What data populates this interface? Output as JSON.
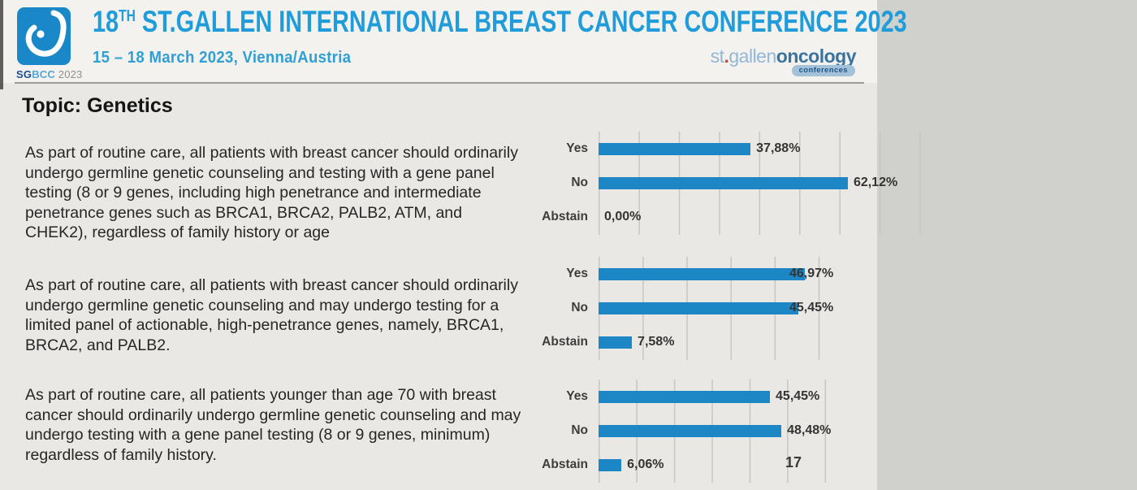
{
  "header": {
    "logo_caption": {
      "sg": "SG",
      "bcc": "BCC",
      "year": " 2023"
    },
    "title": {
      "num": "18",
      "sup": "TH",
      "rest": " ST.GALLEN INTERNATIONAL BREAST CANCER CONFERENCE 2023"
    },
    "subtitle": "15 – 18 March 2023, Vienna/Austria",
    "brand": {
      "st": "st",
      "dot": ".",
      "gallen": "gallen",
      "oncology": "oncology",
      "badge": "conferences"
    }
  },
  "topic": "Topic: Genetics",
  "page_number": "17",
  "questions": [
    "As part of routine care, all patients with breast cancer should ordinarily undergo germline genetic counseling and testing with a gene panel testing (8 or 9 genes, including high penetrance and intermediate penetrance genes such as BRCA1, BRCA2, PALB2, ATM, and CHEK2), regardless of family history or age",
    "As part of routine care, all patients with breast cancer should ordinarily undergo germline genetic counseling and may undergo testing for a limited panel of actionable, high-penetrance genes, namely, BRCA1, BRCA2, and PALB2.",
    "As part of routine care, all patients younger than age 70 with breast cancer should ordinarily undergo germline genetic counseling and may undergo testing with a gene panel testing (8 or 9 genes, minimum) regardless of family history."
  ],
  "chart_data": [
    {
      "type": "bar",
      "orientation": "horizontal",
      "categories": [
        "Yes",
        "No",
        "Abstain"
      ],
      "values": [
        37.88,
        62.12,
        0.0
      ],
      "value_labels": [
        "37,88%",
        "62,12%",
        "0,00%"
      ],
      "xlim": [
        0,
        85
      ],
      "gridline_step": 10,
      "grid": true,
      "bar_color": "#1d87c6"
    },
    {
      "type": "bar",
      "orientation": "horizontal",
      "categories": [
        "Yes",
        "No",
        "Abstain"
      ],
      "values": [
        46.97,
        45.45,
        7.58
      ],
      "value_labels": [
        "46,97%",
        "45,45%",
        "7,58%"
      ],
      "xlim": [
        0,
        60
      ],
      "gridline_step": 10,
      "grid": true,
      "bar_color": "#1d87c6"
    },
    {
      "type": "bar",
      "orientation": "horizontal",
      "categories": [
        "Yes",
        "No",
        "Abstain"
      ],
      "values": [
        45.45,
        48.48,
        6.06
      ],
      "value_labels": [
        "45,45%",
        "48,48%",
        "6,06%"
      ],
      "xlim": [
        0,
        70
      ],
      "gridline_step": 10,
      "grid": true,
      "bar_color": "#1d87c6"
    }
  ],
  "colors": {
    "accent_blue": "#1f9cd9",
    "bar_blue": "#1d87c6",
    "logo_blue": "#1a87c8"
  }
}
